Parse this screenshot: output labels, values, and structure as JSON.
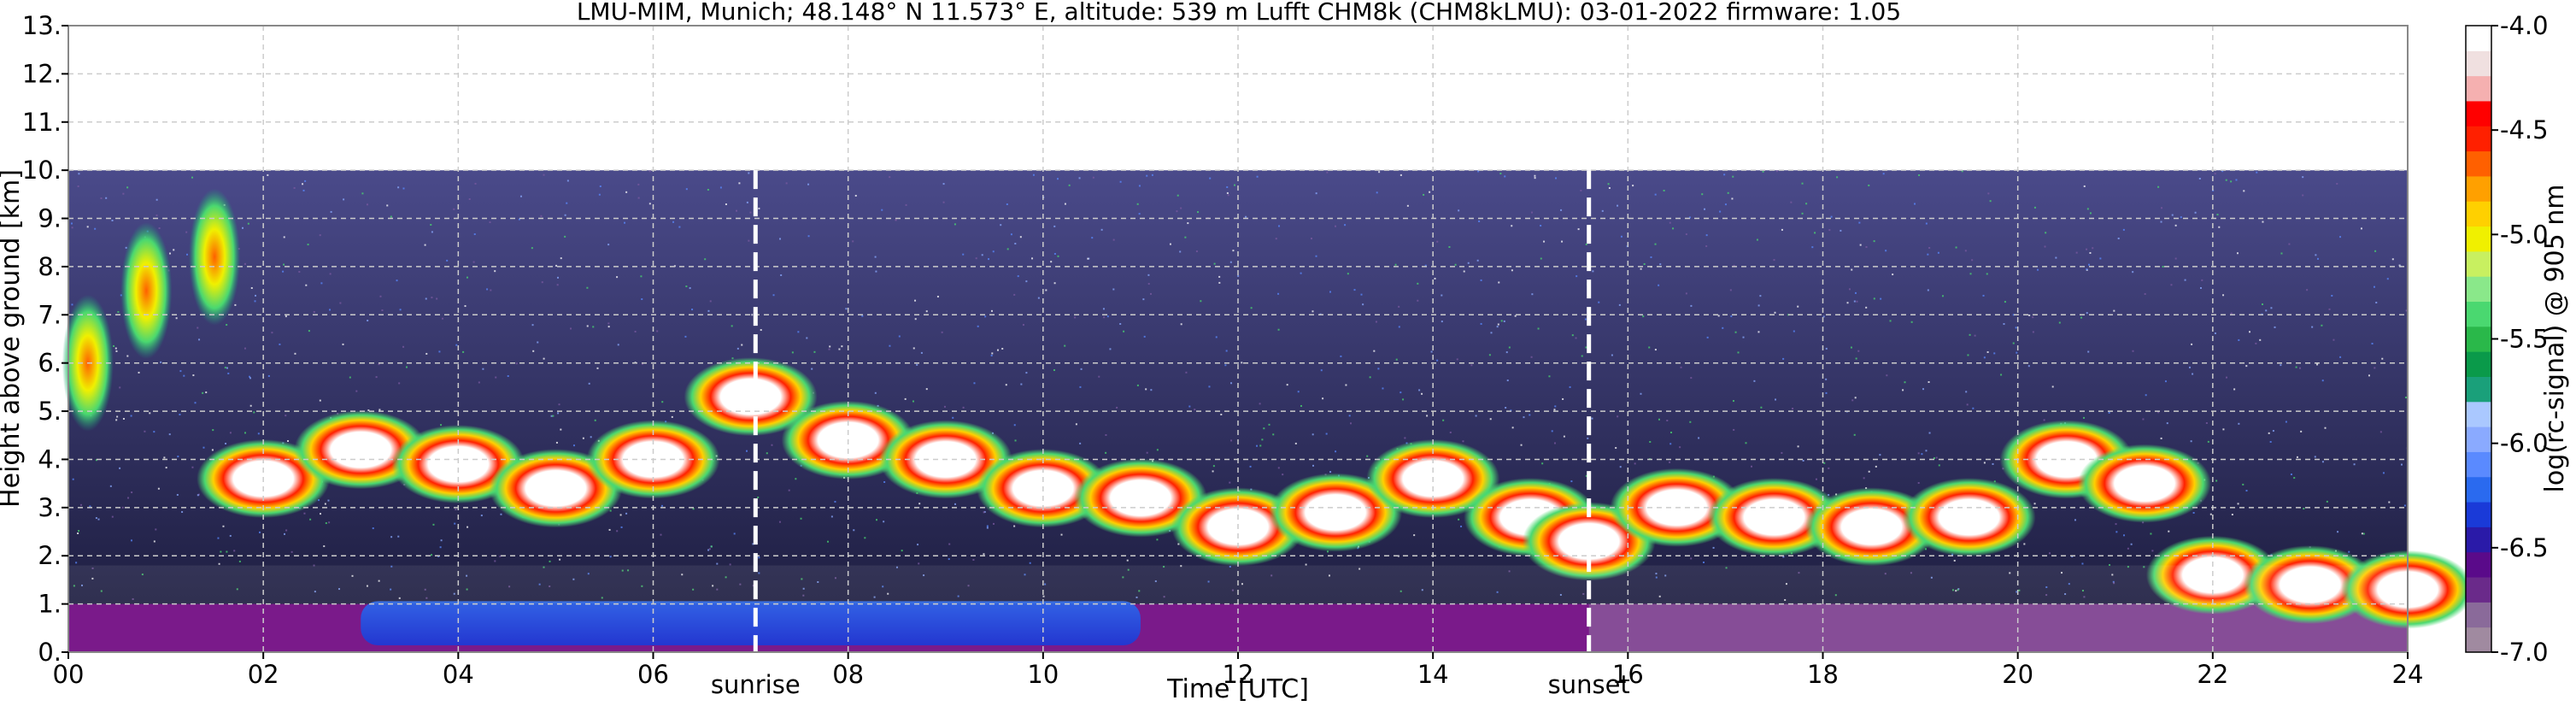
{
  "title": "LMU-MIM, Munich; 48.148° N 11.573° E, altitude: 539 m    Lufft CHM8k (CHM8kLMU): 03-01-2022    firmware: 1.05",
  "chart_data": {
    "type": "heatmap",
    "xlabel": "Time [UTC]",
    "ylabel": "Height above ground [km]",
    "xlim": [
      0,
      24
    ],
    "ylim": [
      0,
      13
    ],
    "x_ticks": [
      "00",
      "02",
      "04",
      "06",
      "08",
      "10",
      "12",
      "14",
      "16",
      "18",
      "20",
      "22",
      "24"
    ],
    "y_ticks": [
      "0.",
      "1.",
      "2.",
      "3.",
      "4.",
      "5.",
      "6.",
      "7.",
      "8.",
      "9.",
      "10.",
      "11.",
      "12.",
      "13."
    ],
    "grid": true,
    "data_ceiling_km": 10,
    "annotations": [
      {
        "label": "sunrise",
        "x": 7.05
      },
      {
        "label": "sunset",
        "x": 15.6
      }
    ],
    "colorbar": {
      "label": "log(rc-signal) @ 905 nm",
      "range": [
        -7.0,
        -4.0
      ],
      "ticks": [
        "-4.0",
        "-4.5",
        "-5.0",
        "-5.5",
        "-6.0",
        "-6.5",
        "-7.0"
      ],
      "colors": [
        "#a08aa0",
        "#8a6a9a",
        "#6a2a8a",
        "#5a0a8a",
        "#2a1aa8",
        "#1a3ad8",
        "#2a6aef",
        "#5a8aff",
        "#8aaaff",
        "#aac8ff",
        "#1aa07a",
        "#0a9a4a",
        "#2ab84a",
        "#4ad870",
        "#8ae88a",
        "#c8f060",
        "#f0f000",
        "#ffd000",
        "#ffa000",
        "#ff6000",
        "#ff2000",
        "#ff0000",
        "#f5b0b0",
        "#f0e0e0",
        "#ffffff"
      ]
    },
    "features": [
      {
        "kind": "surface-layer",
        "x_range": [
          0,
          24
        ],
        "height_km": [
          0,
          1.0
        ]
      },
      {
        "kind": "aerosol-high-signal",
        "x_range": [
          3,
          11
        ],
        "height_km": [
          0,
          1.2
        ]
      },
      {
        "kind": "cloud-band",
        "points": [
          [
            2.0,
            3.6
          ],
          [
            3.0,
            4.2
          ],
          [
            4.0,
            3.9
          ],
          [
            5.0,
            3.4
          ],
          [
            6.0,
            4.0
          ],
          [
            7.0,
            5.3
          ],
          [
            8.0,
            4.4
          ],
          [
            9.0,
            4.0
          ],
          [
            10.0,
            3.4
          ],
          [
            11.0,
            3.2
          ],
          [
            12.0,
            2.6
          ],
          [
            13.0,
            2.9
          ],
          [
            14.0,
            3.6
          ],
          [
            15.0,
            2.8
          ],
          [
            15.6,
            2.3
          ]
        ]
      },
      {
        "kind": "cloud-patches",
        "points": [
          [
            16.5,
            3.0
          ],
          [
            17.5,
            2.8
          ],
          [
            18.5,
            2.6
          ],
          [
            19.5,
            2.8
          ],
          [
            20.5,
            4.0
          ],
          [
            21.3,
            3.5
          ],
          [
            22.0,
            1.6
          ],
          [
            23.0,
            1.4
          ],
          [
            24.0,
            1.3
          ]
        ]
      },
      {
        "kind": "cirrus",
        "points": [
          [
            0.2,
            6.0
          ],
          [
            0.8,
            7.5
          ],
          [
            1.5,
            8.2
          ]
        ]
      }
    ]
  }
}
